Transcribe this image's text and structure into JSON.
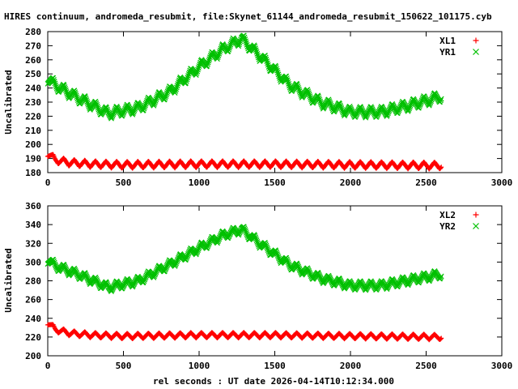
{
  "title": "HIRES continuum, andromeda_resubmit, file:Skynet_61144_andromeda_resubmit_150622_101175.cyb",
  "xlabel": "rel seconds : UT date 2026-04-14T10:12:34.000",
  "colors": {
    "red": "#ff0000",
    "green": "#00c000",
    "axis": "#000000"
  },
  "chart_data": [
    {
      "type": "scatter",
      "ylabel": "Uncalibrated",
      "xlim": [
        0,
        3000
      ],
      "ylim": [
        180,
        280
      ],
      "xticks": [
        0,
        500,
        1000,
        1500,
        2000,
        2500,
        3000
      ],
      "yticks": [
        180,
        190,
        200,
        210,
        220,
        230,
        240,
        250,
        260,
        270,
        280
      ],
      "series": [
        {
          "name": "XL1",
          "marker": "+",
          "color": "#ff0000",
          "x_range": [
            0,
            2600
          ],
          "trend": {
            "x": [
              0,
              50,
              150,
              300,
              500,
              1000,
              1500,
              2000,
              2600
            ],
            "y": [
              194,
              189,
              187,
              186,
              185.5,
              186,
              186,
              185.5,
              185
            ]
          },
          "oscillation_amplitude": 2.5,
          "oscillation_period": 70
        },
        {
          "name": "YR1",
          "marker": "x",
          "color": "#00c000",
          "x_range": [
            0,
            2600
          ],
          "trend": {
            "x": [
              0,
              50,
              200,
              400,
              600,
              800,
              1000,
              1150,
              1280,
              1400,
              1600,
              1800,
              2000,
              2200,
              2400,
              2600
            ],
            "y": [
              247,
              242,
              233,
              222,
              226,
              237,
              255,
              267,
              275,
              263,
              242,
              230,
              223,
              223,
              228,
              234
            ]
          },
          "oscillation_amplitude": 4,
          "oscillation_period": 70
        }
      ]
    },
    {
      "type": "scatter",
      "ylabel": "Uncalibrated",
      "xlim": [
        0,
        3000
      ],
      "ylim": [
        200,
        360
      ],
      "xticks": [
        0,
        500,
        1000,
        1500,
        2000,
        2500,
        3000
      ],
      "yticks": [
        200,
        220,
        240,
        260,
        280,
        300,
        320,
        340,
        360
      ],
      "series": [
        {
          "name": "XL2",
          "marker": "+",
          "color": "#ff0000",
          "x_range": [
            0,
            2600
          ],
          "trend": {
            "x": [
              0,
              50,
              150,
              300,
              500,
              1000,
              1500,
              2000,
              2600
            ],
            "y": [
              236,
              228,
              224,
              222,
              221,
              222,
              222,
              221,
              220
            ]
          },
          "oscillation_amplitude": 3,
          "oscillation_period": 70
        },
        {
          "name": "YR2",
          "marker": "x",
          "color": "#00c000",
          "x_range": [
            0,
            2600
          ],
          "trend": {
            "x": [
              0,
              50,
              200,
              400,
              600,
              800,
              1000,
              1150,
              1280,
              1400,
              1600,
              1800,
              2000,
              2200,
              2400,
              2600
            ],
            "y": [
              303,
              296,
              287,
              273,
              280,
              297,
              315,
              328,
              335,
              320,
              297,
              283,
              275,
              275,
              281,
              287
            ]
          },
          "oscillation_amplitude": 5,
          "oscillation_period": 70
        }
      ]
    }
  ]
}
